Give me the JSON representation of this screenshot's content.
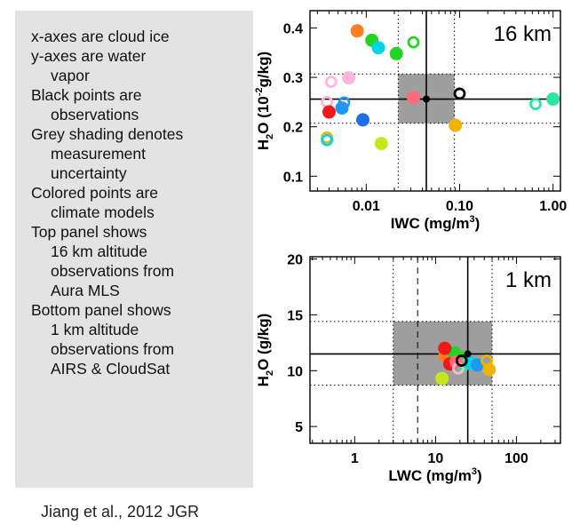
{
  "legend_lines": [
    {
      "text": "x-axes are cloud ice",
      "indent": false
    },
    {
      "text": "y-axes are water",
      "indent": false
    },
    {
      "text": "vapor",
      "indent": true
    },
    {
      "text": "Black points are",
      "indent": false
    },
    {
      "text": "observations",
      "indent": true
    },
    {
      "text": "Grey shading denotes",
      "indent": false
    },
    {
      "text": "measurement",
      "indent": true
    },
    {
      "text": "uncertainty",
      "indent": true
    },
    {
      "text": "Colored points are",
      "indent": false
    },
    {
      "text": "climate models",
      "indent": true
    },
    {
      "text": "Top panel shows",
      "indent": false
    },
    {
      "text": "16 km altitude",
      "indent": true
    },
    {
      "text": "observations from",
      "indent": true
    },
    {
      "text": "Aura MLS",
      "indent": true
    },
    {
      "text": "Bottom panel shows",
      "indent": false
    },
    {
      "text": "1 km altitude",
      "indent": true
    },
    {
      "text": "observations from",
      "indent": true
    },
    {
      "text": "AIRS & CloudSat",
      "indent": true
    }
  ],
  "citation": "Jiang et al., 2012 JGR",
  "chart_data": [
    {
      "type": "scatter",
      "panel_label": "16 km",
      "xlabel": "IWC (mg/m",
      "xlabel_sup": "3",
      "xlabel_end": ")",
      "ylabel": "H",
      "ylabel_sub": "2",
      "ylabel_mid": "O (10",
      "ylabel_sup": "-2",
      "ylabel_end": "g/kg)",
      "xscale": "log",
      "xlim": [
        0.0025,
        1.2
      ],
      "ylim": [
        0.07,
        0.435
      ],
      "xticks": [
        0.01,
        0.1,
        1.0
      ],
      "xtick_labels": [
        "0.01",
        "0.10",
        "1.00"
      ],
      "yticks": [
        0.1,
        0.2,
        0.3,
        0.4
      ],
      "ytick_labels": [
        "0.1",
        "0.2",
        "0.3",
        "0.4"
      ],
      "obs": {
        "x": 0.044,
        "y": 0.256,
        "color": "#000000"
      },
      "uncertainty_box": {
        "x": [
          0.022,
          0.088
        ],
        "y": [
          0.207,
          0.307
        ],
        "color": "#9e9e9e"
      },
      "vertical_lines": [
        {
          "x": 0.044,
          "style": "solid"
        },
        {
          "x": 0.022,
          "style": "dotted"
        },
        {
          "x": 0.088,
          "style": "dotted"
        }
      ],
      "horizontal_lines": [
        {
          "y": 0.256,
          "style": "solid"
        },
        {
          "y": 0.207,
          "style": "dotted"
        },
        {
          "y": 0.307,
          "style": "dotted"
        }
      ],
      "points": [
        {
          "x": 0.008,
          "y": 0.394,
          "color": "#ff7f1e",
          "filled": true
        },
        {
          "x": 0.0115,
          "y": 0.375,
          "color": "#22d522",
          "filled": true
        },
        {
          "x": 0.0135,
          "y": 0.36,
          "color": "#00d4e8",
          "filled": true
        },
        {
          "x": 0.021,
          "y": 0.348,
          "color": "#22d522",
          "filled": true
        },
        {
          "x": 0.032,
          "y": 0.371,
          "color": "#22d522",
          "filled": false
        },
        {
          "x": 0.0065,
          "y": 0.299,
          "color": "#ffb6d9",
          "filled": true
        },
        {
          "x": 0.0042,
          "y": 0.291,
          "color": "#ffb6d9",
          "filled": false
        },
        {
          "x": 0.0038,
          "y": 0.25,
          "color": "#ffb6d9",
          "filled": false
        },
        {
          "x": 0.0058,
          "y": 0.249,
          "color": "#2196f3",
          "filled": false
        },
        {
          "x": 0.0055,
          "y": 0.238,
          "color": "#2196f3",
          "filled": true
        },
        {
          "x": 0.004,
          "y": 0.23,
          "color": "#f01818",
          "filled": true
        },
        {
          "x": 0.0092,
          "y": 0.214,
          "color": "#1e6ee6",
          "filled": true
        },
        {
          "x": 0.0038,
          "y": 0.178,
          "color": "#f0b400",
          "filled": false
        },
        {
          "x": 0.0038,
          "y": 0.173,
          "color": "#00d4e8",
          "filled": false
        },
        {
          "x": 0.0145,
          "y": 0.166,
          "color": "#c8e61e",
          "filled": true
        },
        {
          "x": 0.032,
          "y": 0.259,
          "color": "#ff6b78",
          "filled": true
        },
        {
          "x": 0.09,
          "y": 0.203,
          "color": "#f0b400",
          "filled": true
        },
        {
          "x": 0.1,
          "y": 0.267,
          "color": "#000000",
          "filled": false
        },
        {
          "x": 0.65,
          "y": 0.246,
          "color": "#2ee6a0",
          "filled": false
        },
        {
          "x": 1.0,
          "y": 0.256,
          "color": "#2ee6a0",
          "filled": true
        }
      ]
    },
    {
      "type": "scatter",
      "panel_label": "1 km",
      "xlabel": "LWC (mg/m",
      "xlabel_sup": "3",
      "xlabel_end": ")",
      "ylabel": "H",
      "ylabel_sub": "2",
      "ylabel_mid": "O (g/kg)",
      "ylabel_sup": "",
      "ylabel_end": "",
      "xscale": "log",
      "xlim": [
        0.28,
        350
      ],
      "ylim": [
        3.5,
        20.2
      ],
      "xticks": [
        1,
        10,
        100
      ],
      "xtick_labels": [
        "1",
        "10",
        "100"
      ],
      "yticks": [
        5,
        10,
        15,
        20
      ],
      "ytick_labels": [
        "5",
        "10",
        "15",
        "20"
      ],
      "obs": {
        "x": 25,
        "y": 11.5,
        "color": "#000000"
      },
      "uncertainty_box": {
        "x": [
          3.0,
          50
        ],
        "y": [
          8.7,
          14.4
        ],
        "color": "#9e9e9e"
      },
      "vertical_lines": [
        {
          "x": 25,
          "style": "solid"
        },
        {
          "x": 3.0,
          "style": "dotted"
        },
        {
          "x": 50,
          "style": "dotted"
        },
        {
          "x": 6.0,
          "style": "dashed"
        }
      ],
      "horizontal_lines": [
        {
          "y": 11.5,
          "style": "solid"
        },
        {
          "y": 8.7,
          "style": "dotted"
        },
        {
          "y": 14.4,
          "style": "dotted"
        }
      ],
      "points": [
        {
          "x": 13,
          "y": 11.3,
          "color": "#ff7f1e",
          "filled": true
        },
        {
          "x": 17,
          "y": 11.6,
          "color": "#22d522",
          "filled": true
        },
        {
          "x": 20,
          "y": 11.2,
          "color": "#22d522",
          "filled": true
        },
        {
          "x": 13,
          "y": 12.0,
          "color": "#f01818",
          "filled": true
        },
        {
          "x": 15,
          "y": 10.6,
          "color": "#f01818",
          "filled": true
        },
        {
          "x": 22,
          "y": 10.5,
          "color": "#2ee6a0",
          "filled": true
        },
        {
          "x": 27,
          "y": 10.7,
          "color": "#00d4e8",
          "filled": true
        },
        {
          "x": 33,
          "y": 10.5,
          "color": "#2196f3",
          "filled": true
        },
        {
          "x": 18,
          "y": 10.8,
          "color": "#ff6b78",
          "filled": true
        },
        {
          "x": 19,
          "y": 10.2,
          "color": "#ffb6d9",
          "filled": false
        },
        {
          "x": 46,
          "y": 10.1,
          "color": "#f0b400",
          "filled": true
        },
        {
          "x": 43,
          "y": 10.9,
          "color": "#f0b400",
          "filled": false
        },
        {
          "x": 12,
          "y": 9.3,
          "color": "#c8e61e",
          "filled": true
        },
        {
          "x": 21,
          "y": 10.9,
          "color": "#000000",
          "filled": false
        }
      ]
    }
  ]
}
